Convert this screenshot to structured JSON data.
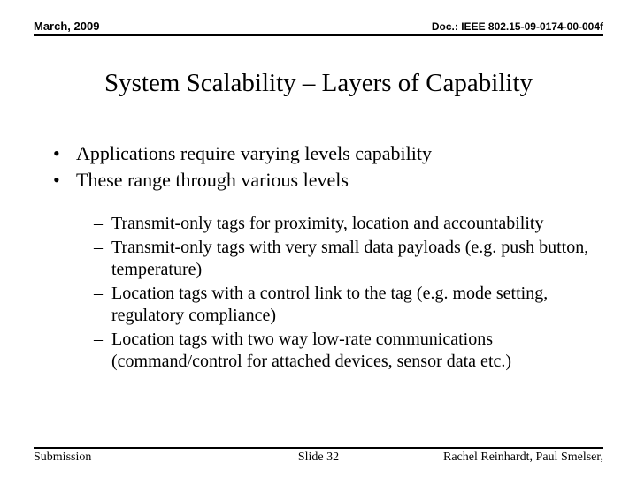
{
  "header": {
    "date": "March, 2009",
    "doc": "Doc.: IEEE 802.15-09-0174-00-004f"
  },
  "title": "System Scalability – Layers of Capability",
  "bullets_level1": [
    "Applications require varying levels capability",
    "These range through various levels"
  ],
  "bullets_level2": [
    "Transmit-only tags for proximity, location and accountability",
    "Transmit-only tags with very small data payloads (e.g. push button, temperature)",
    "Location tags with a control link to the tag (e.g. mode setting, regulatory compliance)",
    "Location tags with two way low-rate communications (command/control for attached devices, sensor data etc.)"
  ],
  "footer": {
    "left": "Submission",
    "center": "Slide 32",
    "right": "Rachel Reinhardt, Paul Smelser,"
  }
}
